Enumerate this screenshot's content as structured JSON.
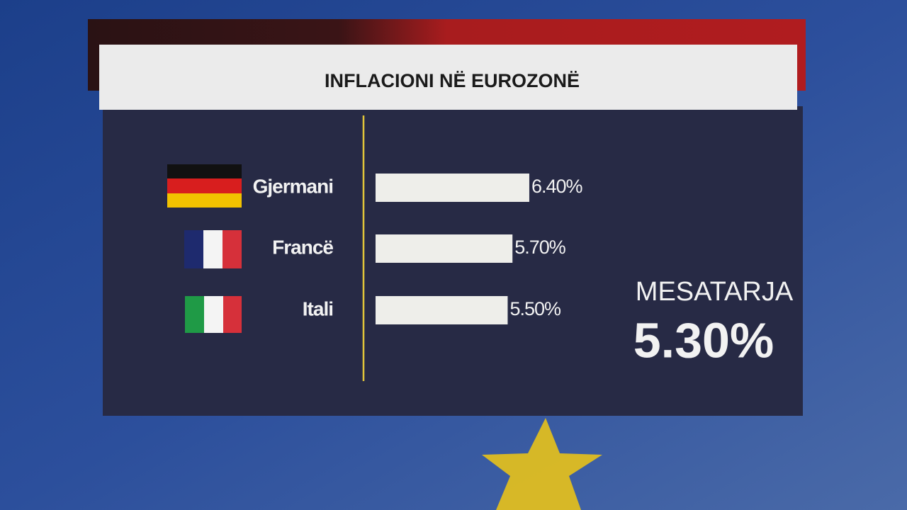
{
  "chart_data": {
    "type": "bar",
    "orientation": "horizontal",
    "title": "INFLACIONI NË EUROZONË",
    "categories": [
      "Gjermani",
      "Francë",
      "Itali"
    ],
    "values": [
      6.4,
      5.7,
      5.5
    ],
    "value_labels": [
      "6.40%",
      "5.70%",
      "5.50%"
    ],
    "color": "#eeeeea",
    "average_label": "MESATARJA",
    "average": 5.3,
    "average_value_label": "5.30%"
  }
}
